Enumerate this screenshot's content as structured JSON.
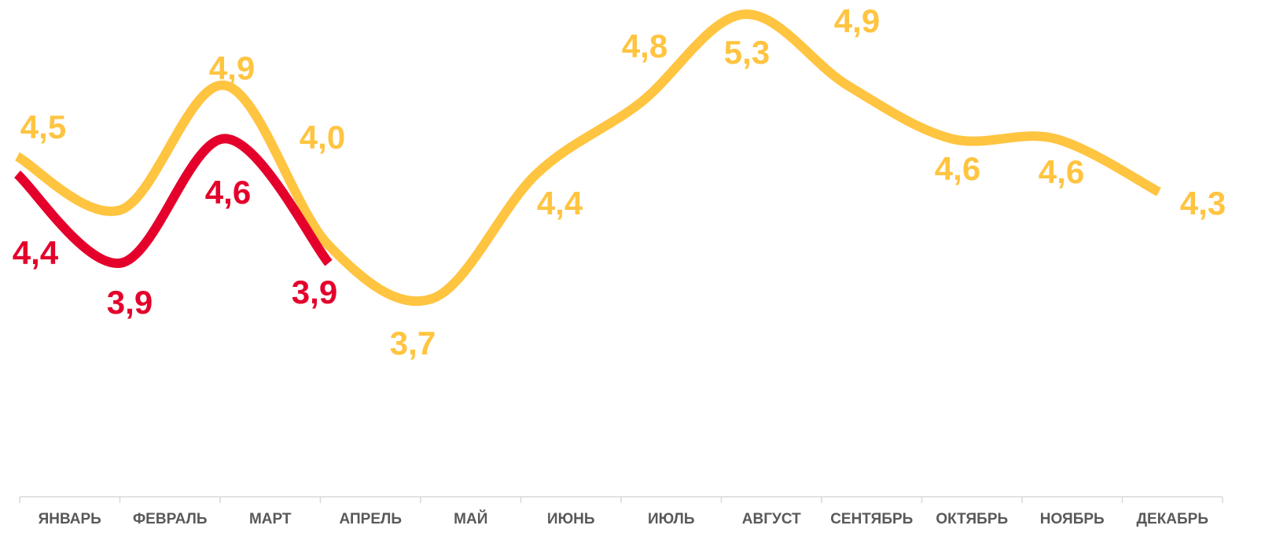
{
  "chart_data": {
    "type": "line",
    "categories": [
      "ЯНВАРЬ",
      "ФЕВРАЛЬ",
      "МАРТ",
      "АПРЕЛЬ",
      "МАЙ",
      "ИЮНЬ",
      "ИЮЛЬ",
      "АВГУСТ",
      "СЕНТЯБРЬ",
      "ОКТЯБРЬ",
      "НОЯБРЬ",
      "ДЕКАБРЬ"
    ],
    "ylim": [
      2.5,
      5.5
    ],
    "series": [
      {
        "color": "#FFC440",
        "values": [
          4.5,
          4.2,
          4.9,
          4.0,
          3.7,
          4.4,
          4.8,
          5.3,
          4.9,
          4.6,
          4.6,
          4.3
        ],
        "value_labels": [
          "4,5",
          null,
          "4,9",
          "4,0",
          "3,7",
          "4,4",
          "4,8",
          "5,3",
          "4,9",
          "4,6",
          "4,6",
          "4,3"
        ]
      },
      {
        "color": "#E4002B",
        "values": [
          4.4,
          3.9,
          4.6,
          3.9,
          null,
          null,
          null,
          null,
          null,
          null,
          null,
          null
        ],
        "value_labels": [
          "4,4",
          "3,9",
          "4,6",
          "3,9",
          null,
          null,
          null,
          null,
          null,
          null,
          null,
          null
        ]
      }
    ]
  }
}
